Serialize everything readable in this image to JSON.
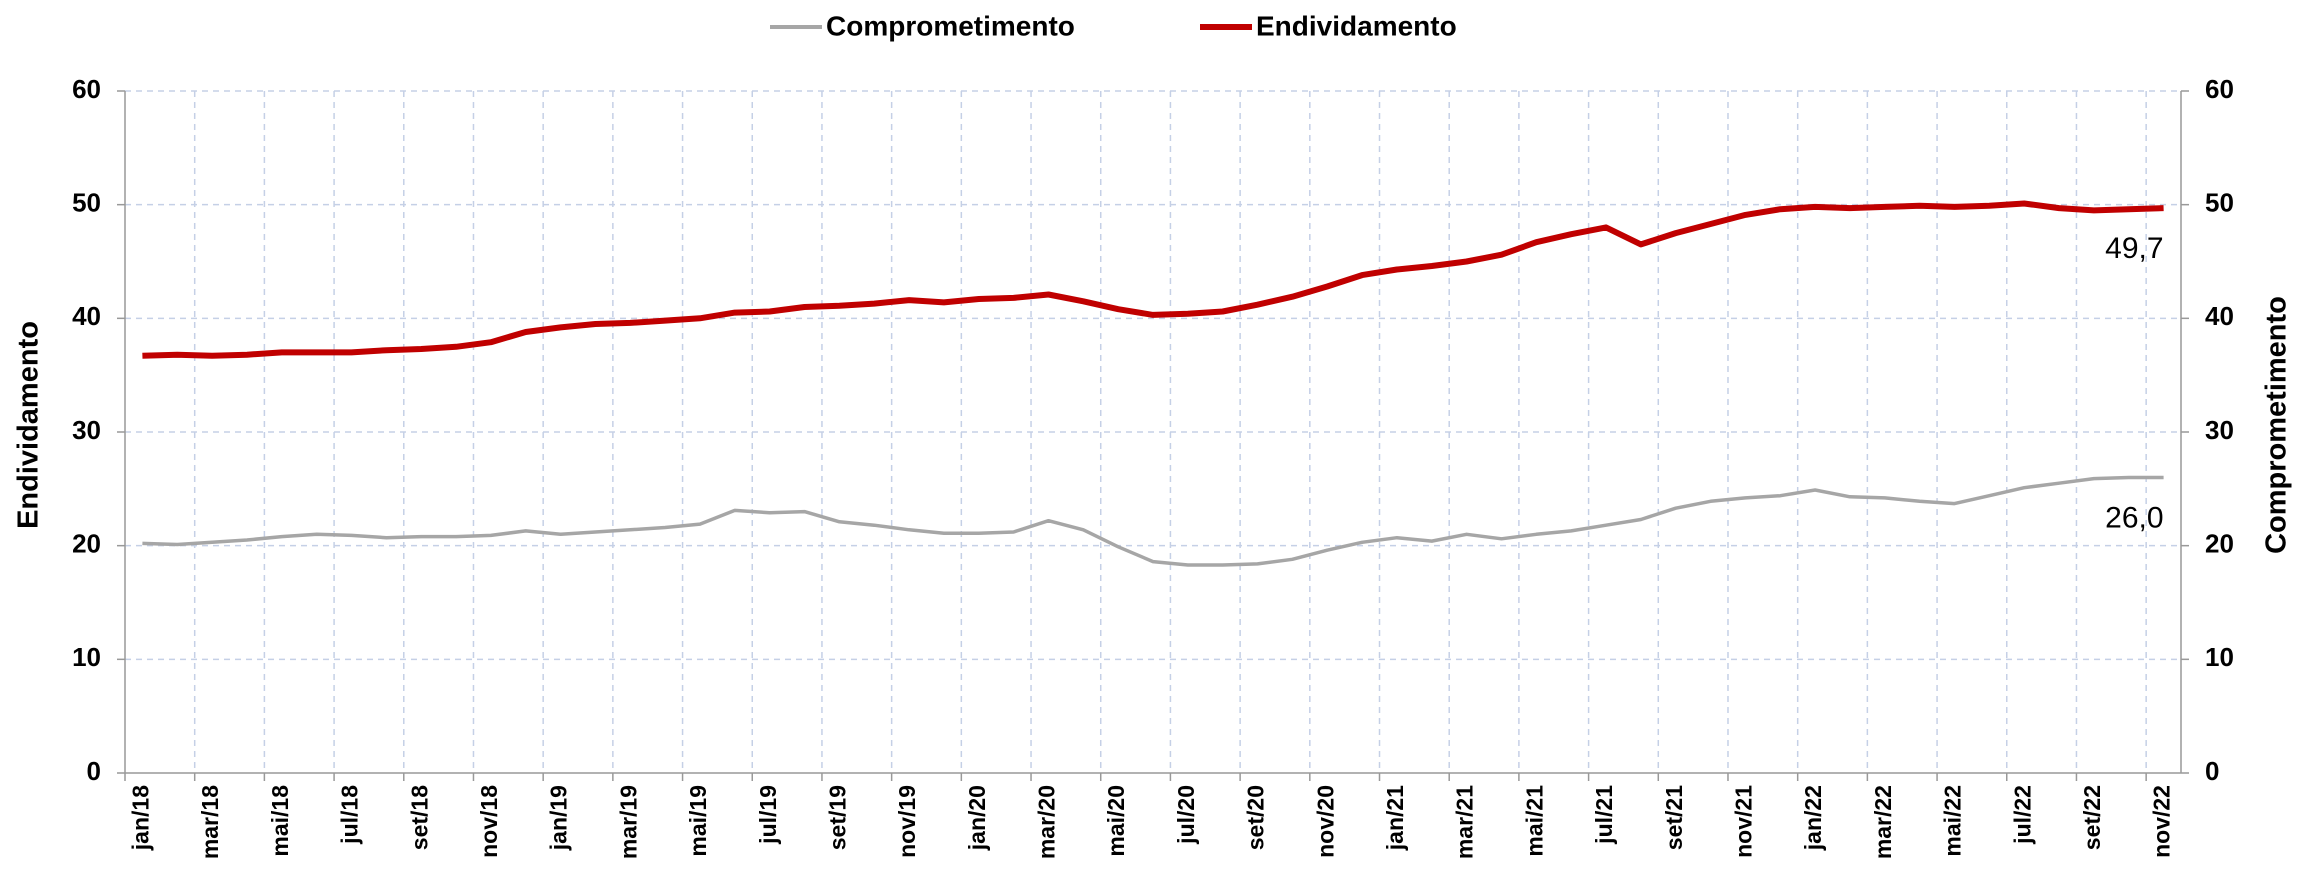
{
  "chart_data": {
    "type": "line",
    "categories": [
      "jan/18",
      null,
      "mar/18",
      null,
      "mai/18",
      null,
      "jul/18",
      null,
      "set/18",
      null,
      "nov/18",
      null,
      "jan/19",
      null,
      "mar/19",
      null,
      "mai/19",
      null,
      "jul/19",
      null,
      "set/19",
      null,
      "nov/19",
      null,
      "jan/20",
      null,
      "mar/20",
      null,
      "mai/20",
      null,
      "jul/20",
      null,
      "set/20",
      null,
      "nov/20",
      null,
      "jan/21",
      null,
      "mar/21",
      null,
      "mai/21",
      null,
      "jul/21",
      null,
      "set/21",
      null,
      "nov/21",
      null,
      "jan/22",
      null,
      "mar/22",
      null,
      "mai/22",
      null,
      "jul/22",
      null,
      "set/22",
      null,
      "nov/22"
    ],
    "series": [
      {
        "name": "Comprometimento",
        "color": "#a6a6a6",
        "axis": "y2",
        "values": [
          20.2,
          20.1,
          20.3,
          20.5,
          20.8,
          21.0,
          20.9,
          20.7,
          20.8,
          20.8,
          20.9,
          21.3,
          21.0,
          21.2,
          21.4,
          21.6,
          21.9,
          23.1,
          22.9,
          23.0,
          22.1,
          21.8,
          21.4,
          21.1,
          21.1,
          21.2,
          22.2,
          21.4,
          19.9,
          18.6,
          18.3,
          18.3,
          18.4,
          18.8,
          19.6,
          20.3,
          20.7,
          20.4,
          21.0,
          20.6,
          21.0,
          21.3,
          21.8,
          22.3,
          23.3,
          23.9,
          24.2,
          24.4,
          24.9,
          24.3,
          24.2,
          23.9,
          23.7,
          24.4,
          25.1,
          25.5,
          25.9,
          26.0,
          26.0
        ],
        "value_labels": [
          null,
          null,
          null,
          null,
          null,
          null,
          null,
          null,
          null,
          null,
          null,
          null,
          null,
          null,
          null,
          null,
          null,
          null,
          null,
          null,
          null,
          null,
          null,
          null,
          null,
          null,
          null,
          null,
          null,
          null,
          null,
          null,
          null,
          null,
          null,
          null,
          null,
          null,
          null,
          null,
          null,
          null,
          null,
          null,
          null,
          null,
          null,
          null,
          null,
          null,
          null,
          null,
          null,
          null,
          null,
          null,
          null,
          null,
          "26,0"
        ]
      },
      {
        "name": "Endividamento",
        "color": "#c00000",
        "values": [
          36.7,
          36.8,
          36.7,
          36.8,
          37.0,
          37.0,
          37.0,
          37.2,
          37.3,
          37.5,
          37.9,
          38.8,
          39.2,
          39.5,
          39.6,
          39.8,
          40.0,
          40.5,
          40.6,
          41.0,
          41.1,
          41.3,
          41.6,
          41.4,
          41.7,
          41.8,
          42.1,
          41.5,
          40.8,
          40.3,
          40.4,
          40.6,
          41.2,
          41.9,
          42.8,
          43.8,
          44.3,
          44.6,
          45.0,
          45.6,
          46.7,
          47.4,
          48.0,
          46.5,
          47.5,
          48.3,
          49.1,
          49.6,
          49.8,
          49.7,
          49.8,
          49.9,
          49.8,
          49.9,
          50.1,
          49.7,
          49.5,
          49.6,
          49.7
        ],
        "value_labels": [
          null,
          null,
          null,
          null,
          null,
          null,
          null,
          null,
          null,
          null,
          null,
          null,
          null,
          null,
          null,
          null,
          null,
          null,
          null,
          null,
          null,
          null,
          null,
          null,
          null,
          null,
          null,
          null,
          null,
          null,
          null,
          null,
          null,
          null,
          null,
          null,
          null,
          null,
          null,
          null,
          null,
          null,
          null,
          null,
          null,
          null,
          null,
          null,
          null,
          null,
          null,
          null,
          null,
          null,
          null,
          null,
          null,
          null,
          "49,7"
        ]
      }
    ],
    "y_label": "Endividamento",
    "y2_label": "Comprometimento",
    "ylim": [
      0,
      60
    ],
    "yticks": [
      0,
      10,
      20,
      30,
      40,
      50,
      60
    ],
    "y2lim": [
      0,
      60
    ],
    "y2ticks": [
      0,
      10,
      20,
      30,
      40,
      50,
      60
    ],
    "grid": true,
    "legend": "top"
  }
}
